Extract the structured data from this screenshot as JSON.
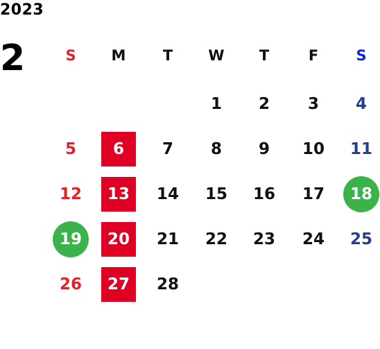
{
  "calendar": {
    "year": "2023",
    "month": "2",
    "weekdays": [
      "S",
      "M",
      "T",
      "W",
      "T",
      "F",
      "S"
    ],
    "weeks": [
      [
        "",
        "",
        "",
        "1",
        "2",
        "3",
        "4"
      ],
      [
        "5",
        "6",
        "7",
        "8",
        "9",
        "10",
        "11"
      ],
      [
        "12",
        "13",
        "14",
        "15",
        "16",
        "17",
        "18"
      ],
      [
        "19",
        "20",
        "21",
        "22",
        "23",
        "24",
        "25"
      ],
      [
        "26",
        "27",
        "28",
        "",
        "",
        "",
        ""
      ]
    ],
    "highlighted_red_days": [
      "6",
      "13",
      "20",
      "27"
    ],
    "highlighted_green_days": [
      "18",
      "19"
    ]
  },
  "colors": {
    "sunday": "#e0232b",
    "saturday": "#233f8e",
    "saturday_header": "#1226d6",
    "red_highlight": "#e00024",
    "green_highlight": "#3ab34a"
  }
}
